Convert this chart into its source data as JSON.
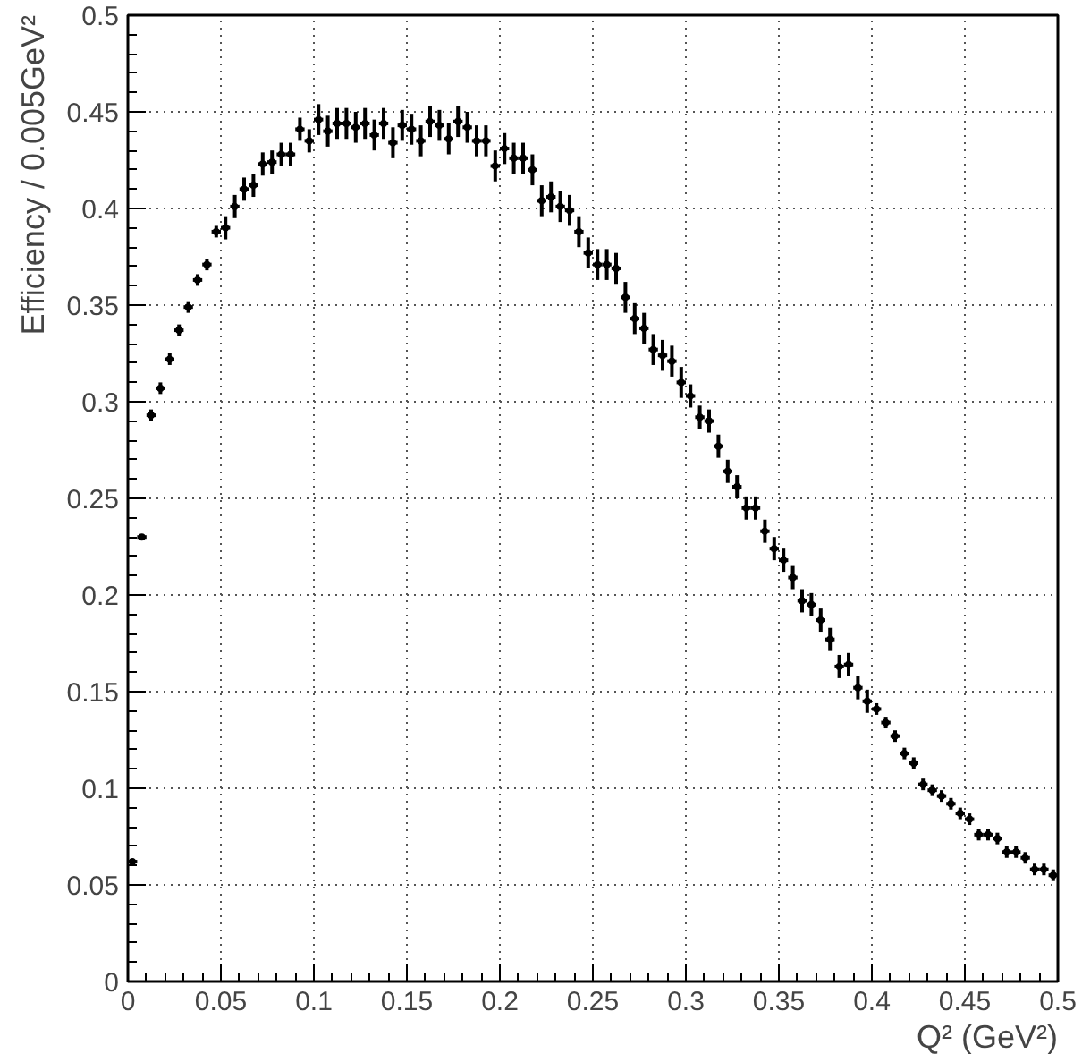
{
  "chart_data": {
    "type": "scatter",
    "marker": "circle",
    "xlabel": "Q² (GeV²)",
    "ylabel": "Efficiency / 0.005GeV²",
    "x": [
      0.0025,
      0.0075,
      0.0125,
      0.0175,
      0.0225,
      0.0275,
      0.0325,
      0.0375,
      0.0425,
      0.0475,
      0.0525,
      0.0575,
      0.0625,
      0.0675,
      0.0725,
      0.0775,
      0.0825,
      0.0875,
      0.0925,
      0.0975,
      0.1025,
      0.1075,
      0.1125,
      0.1175,
      0.1225,
      0.1275,
      0.1325,
      0.1375,
      0.1425,
      0.1475,
      0.1525,
      0.1575,
      0.1625,
      0.1675,
      0.1725,
      0.1775,
      0.1825,
      0.1875,
      0.1925,
      0.1975,
      0.2025,
      0.2075,
      0.2125,
      0.2175,
      0.2225,
      0.2275,
      0.2325,
      0.2375,
      0.2425,
      0.2475,
      0.2525,
      0.2575,
      0.2625,
      0.2675,
      0.2725,
      0.2775,
      0.2825,
      0.2875,
      0.2925,
      0.2975,
      0.3025,
      0.3075,
      0.3125,
      0.3175,
      0.3225,
      0.3275,
      0.3325,
      0.3375,
      0.3425,
      0.3475,
      0.3525,
      0.3575,
      0.3625,
      0.3675,
      0.3725,
      0.3775,
      0.3825,
      0.3875,
      0.3925,
      0.3975,
      0.4025,
      0.4075,
      0.4125,
      0.4175,
      0.4225,
      0.4275,
      0.4325,
      0.4375,
      0.4425,
      0.4475,
      0.4525,
      0.4575,
      0.4625,
      0.4675,
      0.4725,
      0.4775,
      0.4825,
      0.4875,
      0.4925,
      0.4975
    ],
    "series": [
      {
        "color": "#000000",
        "values": [
          0.062,
          0.23,
          0.293,
          0.307,
          0.322,
          0.337,
          0.349,
          0.363,
          0.371,
          0.388,
          0.39,
          0.401,
          0.41,
          0.412,
          0.423,
          0.424,
          0.428,
          0.428,
          0.441,
          0.435,
          0.446,
          0.44,
          0.444,
          0.444,
          0.442,
          0.444,
          0.438,
          0.444,
          0.434,
          0.443,
          0.441,
          0.435,
          0.445,
          0.443,
          0.436,
          0.445,
          0.442,
          0.435,
          0.435,
          0.422,
          0.431,
          0.426,
          0.426,
          0.42,
          0.404,
          0.406,
          0.401,
          0.399,
          0.388,
          0.377,
          0.371,
          0.371,
          0.369,
          0.354,
          0.343,
          0.338,
          0.327,
          0.324,
          0.321,
          0.31,
          0.303,
          0.292,
          0.29,
          0.277,
          0.264,
          0.256,
          0.245,
          0.245,
          0.233,
          0.224,
          0.218,
          0.209,
          0.197,
          0.195,
          0.187,
          0.177,
          0.163,
          0.164,
          0.152,
          0.145,
          0.141,
          0.134,
          0.127,
          0.118,
          0.113,
          0.102,
          0.099,
          0.096,
          0.092,
          0.087,
          0.084,
          0.076,
          0.076,
          0.074,
          0.067,
          0.067,
          0.064,
          0.058,
          0.058,
          0.055
        ],
        "errors": [
          0.001,
          0.001,
          0.003,
          0.003,
          0.003,
          0.003,
          0.003,
          0.003,
          0.003,
          0.003,
          0.006,
          0.006,
          0.006,
          0.006,
          0.006,
          0.006,
          0.006,
          0.006,
          0.006,
          0.006,
          0.008,
          0.008,
          0.008,
          0.008,
          0.008,
          0.008,
          0.008,
          0.008,
          0.008,
          0.008,
          0.008,
          0.008,
          0.008,
          0.008,
          0.008,
          0.008,
          0.008,
          0.008,
          0.008,
          0.008,
          0.008,
          0.008,
          0.008,
          0.008,
          0.008,
          0.008,
          0.008,
          0.008,
          0.008,
          0.008,
          0.008,
          0.008,
          0.008,
          0.008,
          0.008,
          0.008,
          0.008,
          0.008,
          0.008,
          0.008,
          0.006,
          0.006,
          0.006,
          0.006,
          0.006,
          0.006,
          0.006,
          0.006,
          0.006,
          0.006,
          0.006,
          0.006,
          0.006,
          0.006,
          0.006,
          0.006,
          0.006,
          0.006,
          0.006,
          0.006,
          0.003,
          0.003,
          0.003,
          0.003,
          0.003,
          0.003,
          0.003,
          0.003,
          0.003,
          0.003,
          0.003,
          0.003,
          0.003,
          0.003,
          0.003,
          0.003,
          0.003,
          0.003,
          0.003,
          0.003
        ],
        "xerrors": [
          0.0025,
          0.0025,
          0.0025,
          0.0025,
          0.0025,
          0.0025,
          0.0025,
          0.0025,
          0.0025,
          0.0025,
          0.0025,
          0.0025,
          0.0025,
          0.0025,
          0.0025,
          0.0025,
          0.0025,
          0.0025,
          0.0025,
          0.0025,
          0.0025,
          0.0025,
          0.0025,
          0.0025,
          0.0025,
          0.0025,
          0.0025,
          0.0025,
          0.0025,
          0.0025,
          0.0025,
          0.0025,
          0.0025,
          0.0025,
          0.0025,
          0.0025,
          0.0025,
          0.0025,
          0.0025,
          0.0025,
          0.0025,
          0.0025,
          0.0025,
          0.0025,
          0.0025,
          0.0025,
          0.0025,
          0.0025,
          0.0025,
          0.0025,
          0.0025,
          0.0025,
          0.0025,
          0.0025,
          0.0025,
          0.0025,
          0.0025,
          0.0025,
          0.0025,
          0.0025,
          0.0025,
          0.0025,
          0.0025,
          0.0025,
          0.0025,
          0.0025,
          0.0025,
          0.0025,
          0.0025,
          0.0025,
          0.0025,
          0.0025,
          0.0025,
          0.0025,
          0.0025,
          0.0025,
          0.0025,
          0.0025,
          0.0025,
          0.0025,
          0.0025,
          0.0025,
          0.0025,
          0.0025,
          0.0025,
          0.0025,
          0.0025,
          0.0025,
          0.0025,
          0.0025,
          0.0025,
          0.0025,
          0.0025,
          0.0025,
          0.0025,
          0.0025,
          0.0025,
          0.0025,
          0.0025,
          0.0025
        ]
      }
    ],
    "xlim": [
      0,
      0.5
    ],
    "ylim": [
      0,
      0.5
    ],
    "xticks": [
      0,
      0.05,
      0.1,
      0.15,
      0.2,
      0.25,
      0.3,
      0.35,
      0.4,
      0.45,
      0.5
    ],
    "yticks": [
      0,
      0.05,
      0.1,
      0.15,
      0.2,
      0.25,
      0.3,
      0.35,
      0.4,
      0.45,
      0.5
    ],
    "grid": true
  }
}
